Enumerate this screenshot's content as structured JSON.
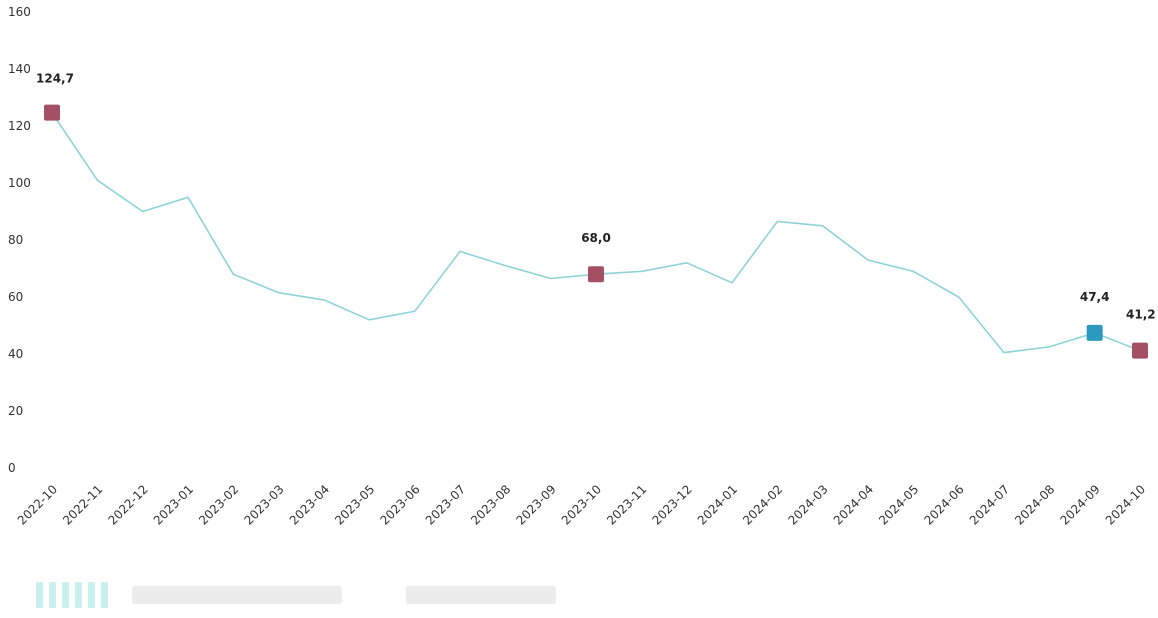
{
  "chart_data": {
    "type": "line",
    "x": [
      "2022-10",
      "2022-11",
      "2022-12",
      "2023-01",
      "2023-02",
      "2023-03",
      "2023-04",
      "2023-05",
      "2023-06",
      "2023-07",
      "2023-08",
      "2023-09",
      "2023-10",
      "2023-11",
      "2023-12",
      "2024-01",
      "2024-02",
      "2024-03",
      "2024-04",
      "2024-05",
      "2024-06",
      "2024-07",
      "2024-08",
      "2024-09",
      "2024-10"
    ],
    "series": [
      {
        "values": [
          124.7,
          101,
          90,
          95,
          68,
          61.5,
          59,
          52,
          55,
          76,
          71,
          66.5,
          68.0,
          69,
          72,
          65,
          86.5,
          85,
          73,
          69,
          60,
          40.5,
          42.5,
          47.4,
          41.2
        ]
      }
    ],
    "ylim": [
      0,
      160
    ],
    "yticks": [
      "0",
      "20",
      "40",
      "60",
      "80",
      "100",
      "120",
      "140",
      "160"
    ],
    "grid": false,
    "line_color": "#8fd3d8",
    "highlights": [
      {
        "index": 0,
        "label": "124,7",
        "color": "#a35064"
      },
      {
        "index": 12,
        "label": "68,0",
        "color": "#a35064"
      },
      {
        "index": 23,
        "label": "47,4",
        "color": "#2a9bbf"
      },
      {
        "index": 24,
        "label": "41,2",
        "color": "#a35064"
      }
    ]
  },
  "legend": {
    "swatch_color": "#c9efef"
  }
}
